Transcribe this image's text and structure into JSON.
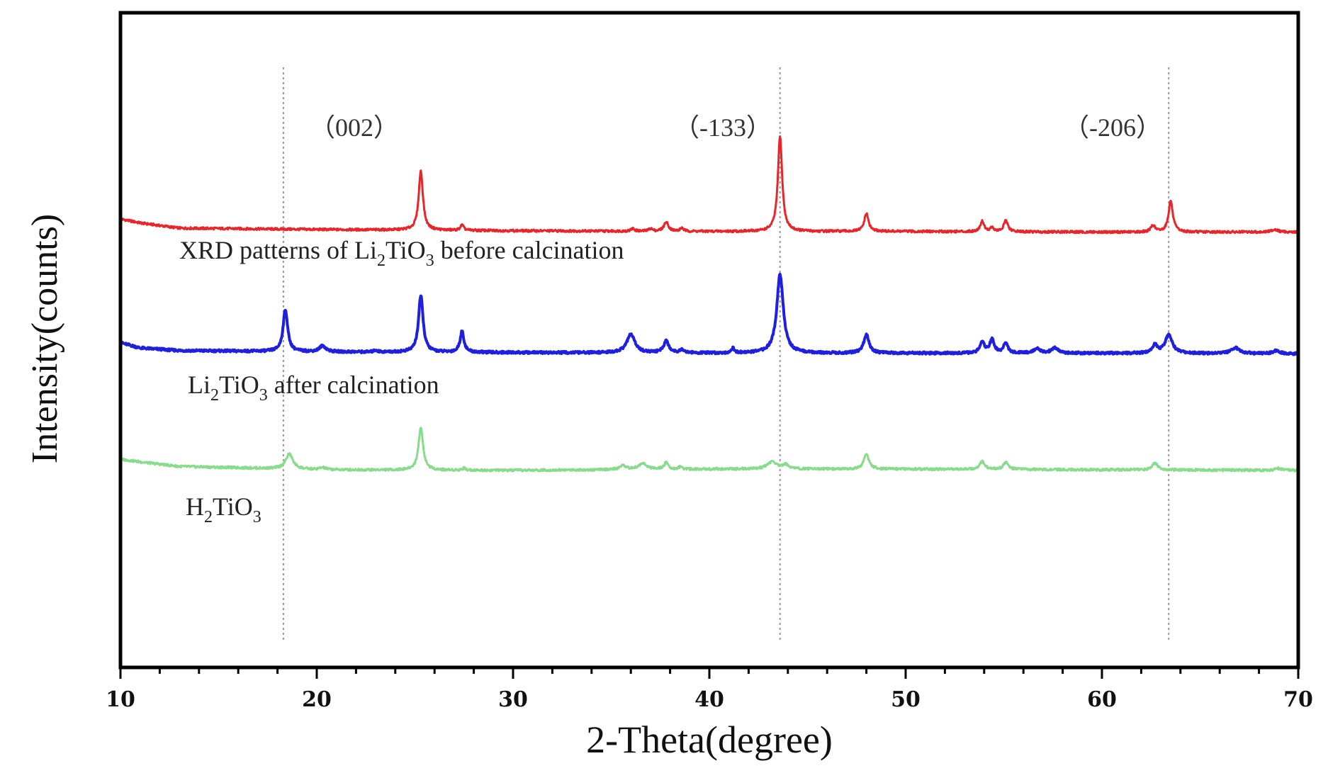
{
  "chart_data": {
    "type": "line",
    "xlabel": "2-Theta(degree)",
    "ylabel": "Intensity(counts)",
    "xlim": [
      10,
      70
    ],
    "xticks": [
      10,
      20,
      30,
      40,
      50,
      60,
      70
    ],
    "y_scale": "arbitrary, stacked offsets (no y tick labels)",
    "ylim": [
      0,
      100
    ],
    "grid": false,
    "legend": "inline labels below each trace",
    "annotations": [
      {
        "text": "（002）",
        "x": 18.3,
        "guide_line": true
      },
      {
        "text": "（-133）",
        "x": 43.6,
        "guide_line": true
      },
      {
        "text": "（-206）",
        "x": 63.4,
        "guide_line": true
      }
    ],
    "series": [
      {
        "label_parts": [
          "XRD patterns of Li",
          "2",
          "TiO",
          "3",
          " before calcination"
        ],
        "color": "#e8262a",
        "baseline": [
          [
            10,
            68.5
          ],
          [
            11,
            67.9
          ],
          [
            13,
            67.1
          ],
          [
            20,
            66.9
          ],
          [
            30,
            66.7
          ],
          [
            40,
            66.6
          ],
          [
            50,
            66.6
          ],
          [
            60,
            66.5
          ],
          [
            70,
            66.5
          ]
        ],
        "peaks": [
          {
            "x": 25.3,
            "h": 9.0,
            "w": 0.13
          },
          {
            "x": 27.4,
            "h": 0.8,
            "w": 0.1
          },
          {
            "x": 36.1,
            "h": 0.4,
            "w": 0.1
          },
          {
            "x": 37.0,
            "h": 0.4,
            "w": 0.1
          },
          {
            "x": 37.8,
            "h": 1.4,
            "w": 0.14
          },
          {
            "x": 38.6,
            "h": 0.5,
            "w": 0.1
          },
          {
            "x": 43.6,
            "h": 14.5,
            "w": 0.13
          },
          {
            "x": 48.0,
            "h": 2.7,
            "w": 0.13
          },
          {
            "x": 53.9,
            "h": 1.6,
            "w": 0.12
          },
          {
            "x": 54.4,
            "h": 0.6,
            "w": 0.1
          },
          {
            "x": 55.1,
            "h": 1.7,
            "w": 0.12
          },
          {
            "x": 62.6,
            "h": 1.0,
            "w": 0.13
          },
          {
            "x": 63.5,
            "h": 4.8,
            "w": 0.13
          },
          {
            "x": 68.8,
            "h": 0.4,
            "w": 0.2
          }
        ]
      },
      {
        "label_parts": [
          "Li",
          "2",
          "TiO",
          "3",
          " after calcination"
        ],
        "color": "#1f1fe0",
        "baseline": [
          [
            10,
            49.6
          ],
          [
            11,
            48.8
          ],
          [
            13,
            48.4
          ],
          [
            20,
            48.2
          ],
          [
            30,
            48.1
          ],
          [
            40,
            48.0
          ],
          [
            50,
            48.0
          ],
          [
            60,
            48.0
          ],
          [
            70,
            47.9
          ]
        ],
        "peaks": [
          {
            "x": 18.4,
            "h": 6.4,
            "w": 0.14
          },
          {
            "x": 20.3,
            "h": 0.9,
            "w": 0.2
          },
          {
            "x": 23.0,
            "h": 0.3,
            "w": 0.1
          },
          {
            "x": 25.3,
            "h": 8.6,
            "w": 0.14
          },
          {
            "x": 27.4,
            "h": 3.2,
            "w": 0.12
          },
          {
            "x": 36.0,
            "h": 2.8,
            "w": 0.25
          },
          {
            "x": 37.8,
            "h": 1.8,
            "w": 0.16
          },
          {
            "x": 38.6,
            "h": 0.5,
            "w": 0.15
          },
          {
            "x": 41.2,
            "h": 0.7,
            "w": 0.1
          },
          {
            "x": 43.6,
            "h": 12.0,
            "w": 0.2
          },
          {
            "x": 48.0,
            "h": 2.8,
            "w": 0.16
          },
          {
            "x": 53.9,
            "h": 1.6,
            "w": 0.14
          },
          {
            "x": 54.4,
            "h": 2.0,
            "w": 0.14
          },
          {
            "x": 55.1,
            "h": 1.4,
            "w": 0.14
          },
          {
            "x": 56.7,
            "h": 0.7,
            "w": 0.18
          },
          {
            "x": 57.6,
            "h": 0.8,
            "w": 0.2
          },
          {
            "x": 62.7,
            "h": 1.2,
            "w": 0.15
          },
          {
            "x": 63.4,
            "h": 2.8,
            "w": 0.22
          },
          {
            "x": 66.8,
            "h": 0.9,
            "w": 0.25
          },
          {
            "x": 68.9,
            "h": 0.5,
            "w": 0.2
          }
        ]
      },
      {
        "label_parts": [
          "H",
          "2",
          "TiO",
          "3"
        ],
        "color": "#86dc8a",
        "baseline": [
          [
            10,
            31.8
          ],
          [
            11,
            31.4
          ],
          [
            13,
            30.7
          ],
          [
            16,
            30.5
          ],
          [
            20,
            30.2
          ],
          [
            30,
            30.1
          ],
          [
            40,
            30.3
          ],
          [
            50,
            30.3
          ],
          [
            60,
            30.2
          ],
          [
            70,
            30.1
          ]
        ],
        "peaks": [
          {
            "x": 18.6,
            "h": 2.3,
            "w": 0.22
          },
          {
            "x": 20.3,
            "h": 0.3,
            "w": 0.2
          },
          {
            "x": 25.3,
            "h": 6.5,
            "w": 0.14
          },
          {
            "x": 27.5,
            "h": 0.3,
            "w": 0.1
          },
          {
            "x": 35.6,
            "h": 0.6,
            "w": 0.2
          },
          {
            "x": 36.6,
            "h": 0.9,
            "w": 0.25
          },
          {
            "x": 37.8,
            "h": 1.0,
            "w": 0.13
          },
          {
            "x": 38.5,
            "h": 0.3,
            "w": 0.1
          },
          {
            "x": 43.2,
            "h": 1.1,
            "w": 0.3
          },
          {
            "x": 43.9,
            "h": 0.6,
            "w": 0.2
          },
          {
            "x": 48.0,
            "h": 2.2,
            "w": 0.16
          },
          {
            "x": 53.9,
            "h": 1.2,
            "w": 0.15
          },
          {
            "x": 55.1,
            "h": 1.1,
            "w": 0.14
          },
          {
            "x": 62.7,
            "h": 1.1,
            "w": 0.15
          },
          {
            "x": 69.0,
            "h": 0.3,
            "w": 0.2
          }
        ]
      }
    ]
  }
}
